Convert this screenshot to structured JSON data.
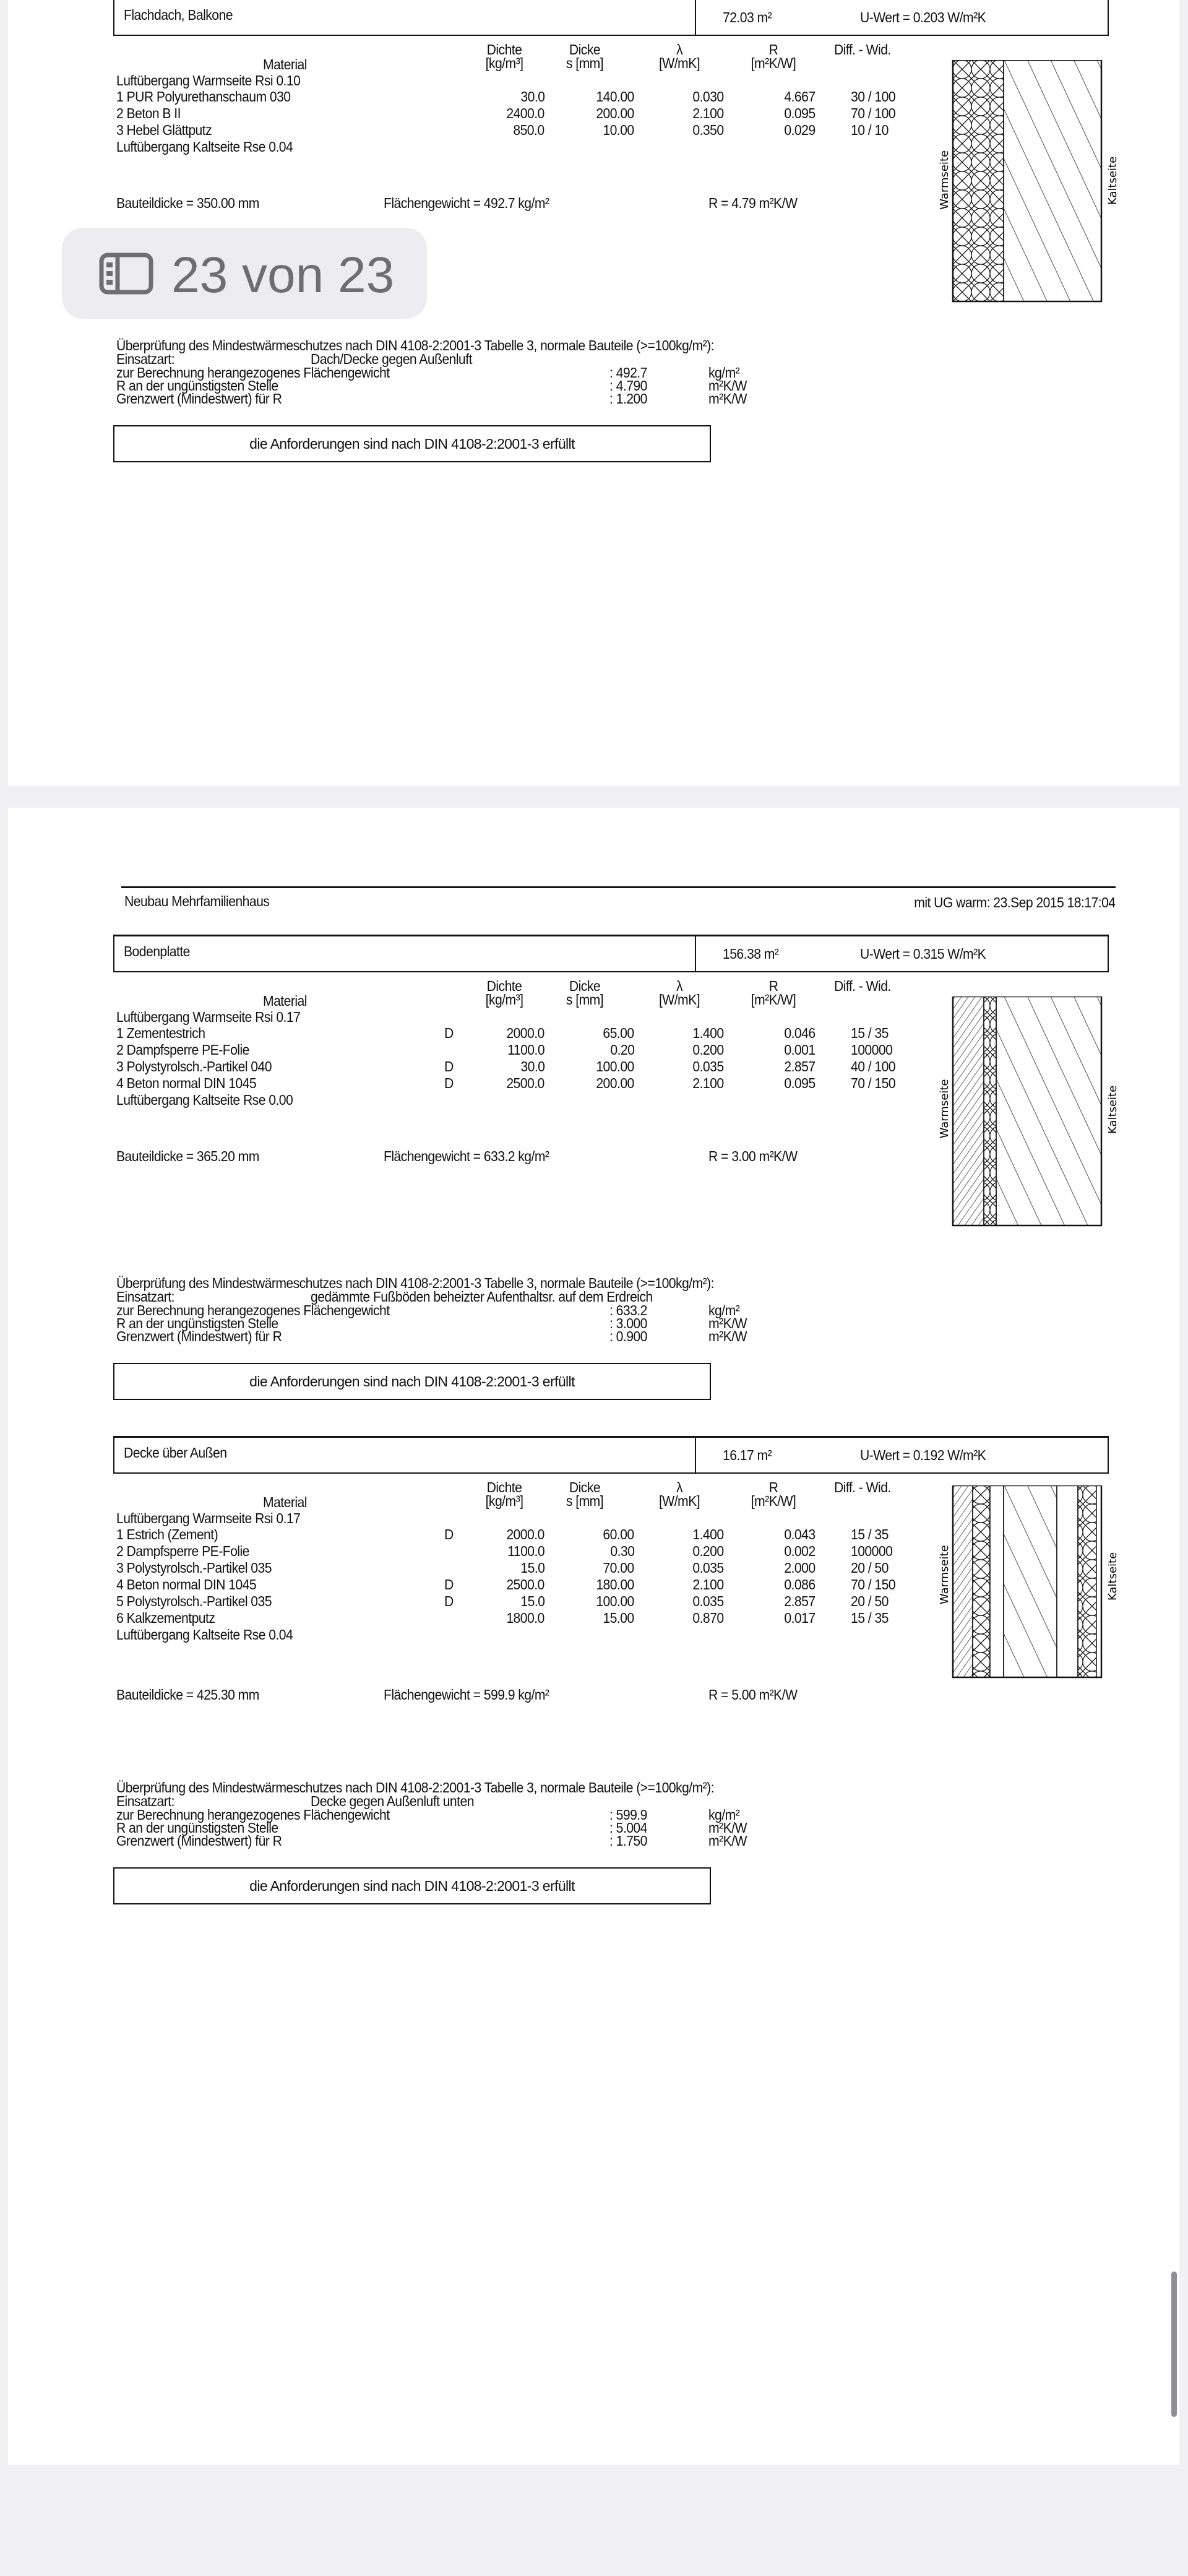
{
  "pager": {
    "label": "23 von 23",
    "icon": "sidebar-icon"
  },
  "columns": {
    "material": "Material",
    "dichte": [
      "Dichte",
      "[kg/m³]"
    ],
    "dicke": [
      "Dicke",
      "s [mm]"
    ],
    "lambda": [
      "λ",
      "[W/mK]"
    ],
    "r": [
      "R",
      "[m²K/W]"
    ],
    "diff": "Diff. - Wid."
  },
  "diagram_labels": {
    "warm": "Warmseite",
    "kalt": "Kaltseite"
  },
  "page2_header": {
    "project": "Neubau Mehrfamilienhaus",
    "info": "mit UG warm: 23.Sep 2015 18:17:04"
  },
  "sections": [
    {
      "title": "Flachdach, Balkone",
      "area": "72.03 m²",
      "uwert": "U-Wert = 0.203 W/m²K",
      "rsi": "Luftübergang Warmseite Rsi  0.10",
      "layers": [
        {
          "name": "1  PUR Polyurethanschaum 030",
          "d": "",
          "dichte": "30.0",
          "dicke": "140.00",
          "lambda": "0.030",
          "r": "4.667",
          "diff": "30 / 100"
        },
        {
          "name": "2  Beton B II",
          "d": "",
          "dichte": "2400.0",
          "dicke": "200.00",
          "lambda": "2.100",
          "r": "0.095",
          "diff": "70 / 100"
        },
        {
          "name": "3  Hebel Glättputz",
          "d": "",
          "dichte": "850.0",
          "dicke": "10.00",
          "lambda": "0.350",
          "r": "0.029",
          "diff": "10 / 10"
        }
      ],
      "rse": "Luftübergang Kaltseite Rse  0.04",
      "bauteildicke": "Bauteildicke = 350.00 mm",
      "flaechengewicht": "Flächengewicht = 492.7 kg/m²",
      "r_total": "R = 4.79 m²K/W",
      "check_title": "Überprüfung des Mindestwärmeschutzes nach DIN 4108-2:2001-3 Tabelle 3, normale Bauteile (>=100kg/m²):",
      "einsatzart_label": "Einsatzart:",
      "einsatzart": "Dach/Decke gegen Außenluft",
      "checks": [
        {
          "label": "zur Berechnung herangezogenes Flächengewicht",
          "value": ": 492.7",
          "unit": "kg/m²"
        },
        {
          "label": "R an der ungünstigsten Stelle",
          "value": ": 4.790",
          "unit": "m²K/W"
        },
        {
          "label": "Grenzwert (Mindestwert) für R",
          "value": ": 1.200",
          "unit": "m²K/W"
        }
      ],
      "result": "die Anforderungen sind nach DIN 4108-2:2001-3 erfüllt"
    },
    {
      "title": "Bodenplatte",
      "area": "156.38 m²",
      "uwert": "U-Wert = 0.315 W/m²K",
      "rsi": "Luftübergang Warmseite Rsi  0.17",
      "layers": [
        {
          "name": "1  Zementestrich",
          "d": "D",
          "dichte": "2000.0",
          "dicke": "65.00",
          "lambda": "1.400",
          "r": "0.046",
          "diff": "15 / 35"
        },
        {
          "name": "2  Dampfsperre  PE-Folie",
          "d": "",
          "dichte": "1100.0",
          "dicke": "0.20",
          "lambda": "0.200",
          "r": "0.001",
          "diff": "100000"
        },
        {
          "name": "3  Polystyrolsch.-Partikel 040",
          "d": "D",
          "dichte": "30.0",
          "dicke": "100.00",
          "lambda": "0.035",
          "r": "2.857",
          "diff": "40 / 100"
        },
        {
          "name": "4  Beton normal DIN 1045",
          "d": "D",
          "dichte": "2500.0",
          "dicke": "200.00",
          "lambda": "2.100",
          "r": "0.095",
          "diff": "70 / 150"
        }
      ],
      "rse": "Luftübergang Kaltseite Rse  0.00",
      "bauteildicke": "Bauteildicke = 365.20 mm",
      "flaechengewicht": "Flächengewicht = 633.2 kg/m²",
      "r_total": "R = 3.00 m²K/W",
      "check_title": "Überprüfung des Mindestwärmeschutzes nach DIN 4108-2:2001-3 Tabelle 3, normale Bauteile (>=100kg/m²):",
      "einsatzart_label": "Einsatzart:",
      "einsatzart": "gedämmte Fußböden beheizter Aufenthaltsr. auf dem Erdreich",
      "checks": [
        {
          "label": "zur Berechnung herangezogenes Flächengewicht",
          "value": ": 633.2",
          "unit": "kg/m²"
        },
        {
          "label": "R an der ungünstigsten Stelle",
          "value": ": 3.000",
          "unit": "m²K/W"
        },
        {
          "label": "Grenzwert (Mindestwert) für R",
          "value": ": 0.900",
          "unit": "m²K/W"
        }
      ],
      "result": "die Anforderungen sind nach DIN 4108-2:2001-3 erfüllt"
    },
    {
      "title": "Decke über Außen",
      "area": "16.17 m²",
      "uwert": "U-Wert = 0.192 W/m²K",
      "rsi": "Luftübergang Warmseite Rsi  0.17",
      "layers": [
        {
          "name": "1  Estrich (Zement)",
          "d": "D",
          "dichte": "2000.0",
          "dicke": "60.00",
          "lambda": "1.400",
          "r": "0.043",
          "diff": "15 / 35"
        },
        {
          "name": "2  Dampfsperre  PE-Folie",
          "d": "",
          "dichte": "1100.0",
          "dicke": "0.30",
          "lambda": "0.200",
          "r": "0.002",
          "diff": "100000"
        },
        {
          "name": "3  Polystyrolsch.-Partikel 035",
          "d": "",
          "dichte": "15.0",
          "dicke": "70.00",
          "lambda": "0.035",
          "r": "2.000",
          "diff": "20 / 50"
        },
        {
          "name": "4  Beton normal DIN 1045",
          "d": "D",
          "dichte": "2500.0",
          "dicke": "180.00",
          "lambda": "2.100",
          "r": "0.086",
          "diff": "70 / 150"
        },
        {
          "name": "5  Polystyrolsch.-Partikel 035",
          "d": "D",
          "dichte": "15.0",
          "dicke": "100.00",
          "lambda": "0.035",
          "r": "2.857",
          "diff": "20 / 50"
        },
        {
          "name": "6  Kalkzementputz",
          "d": "",
          "dichte": "1800.0",
          "dicke": "15.00",
          "lambda": "0.870",
          "r": "0.017",
          "diff": "15 / 35"
        }
      ],
      "rse": "Luftübergang Kaltseite Rse  0.04",
      "bauteildicke": "Bauteildicke = 425.30 mm",
      "flaechengewicht": "Flächengewicht = 599.9 kg/m²",
      "r_total": "R = 5.00 m²K/W",
      "check_title": "Überprüfung des Mindestwärmeschutzes nach DIN 4108-2:2001-3 Tabelle 3, normale Bauteile (>=100kg/m²):",
      "einsatzart_label": "Einsatzart:",
      "einsatzart": "Decke gegen Außenluft unten",
      "checks": [
        {
          "label": "zur Berechnung herangezogenes Flächengewicht",
          "value": ": 599.9",
          "unit": "kg/m²"
        },
        {
          "label": "R an der ungünstigsten Stelle",
          "value": ": 5.004",
          "unit": "m²K/W"
        },
        {
          "label": "Grenzwert (Mindestwert) für R",
          "value": ": 1.750",
          "unit": "m²K/W"
        }
      ],
      "result": "die Anforderungen sind nach DIN 4108-2:2001-3 erfüllt"
    }
  ]
}
